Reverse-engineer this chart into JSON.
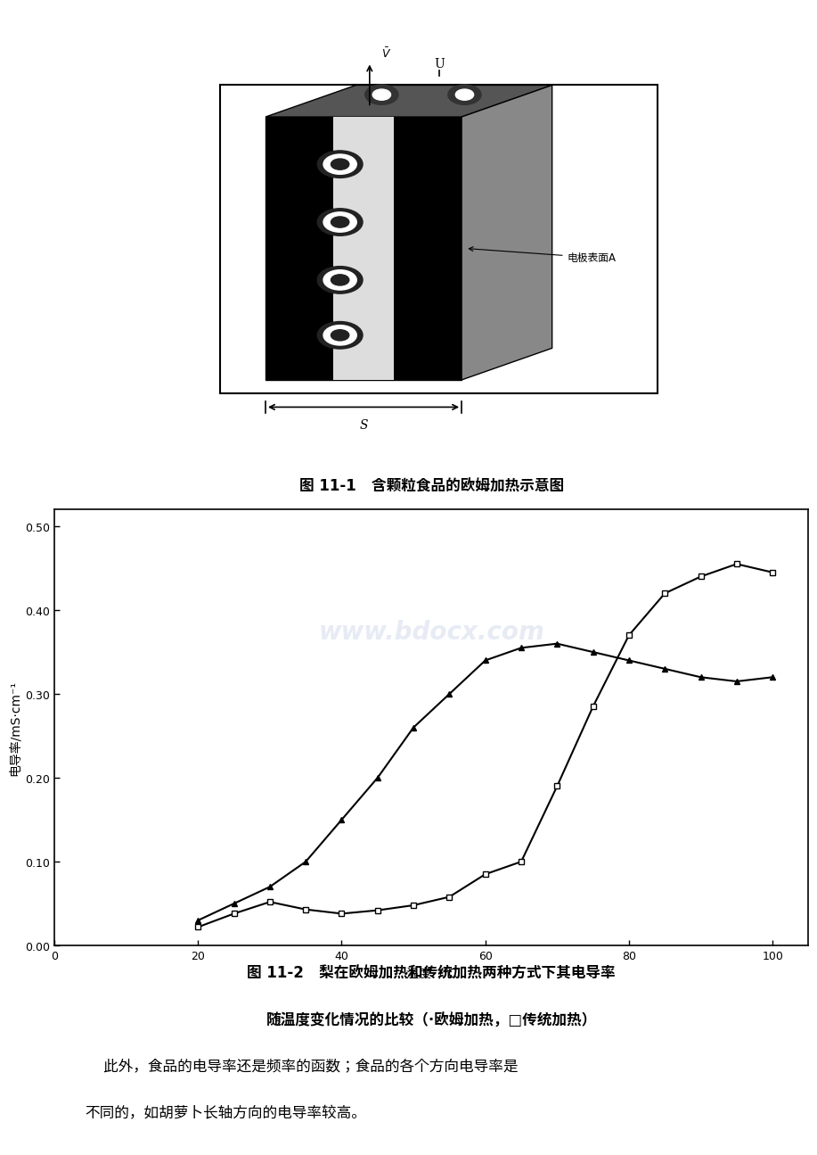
{
  "fig_width": 9.2,
  "fig_height": 13.02,
  "fig_dpi": 100,
  "background_color": "#ffffff",
  "watermark_text": "www.bdocx.com",
  "watermark_color": "#c8d4e8",
  "watermark_alpha": 0.45,
  "caption1": "图 11-1   含颗粒食品的欧姆加热示意图",
  "caption2_line1": "图 11-2   梨在欧姆加热和传统加热两种方式下其电导率",
  "caption2_line2": "随温度变化情况的比较（·欧姆加热，□传统加热）",
  "body_text_line1": "    此外，食品的电导率还是频率的函数；食品的各个方向电导率是",
  "body_text_line2": "不同的，如胡萝卜长轴方向的电导率较高。",
  "xlabel": "温度  /℃",
  "ylabel": "电导率/mS·cm⁻¹",
  "xlim": [
    0,
    105
  ],
  "ylim": [
    0.0,
    0.52
  ],
  "xticks": [
    0,
    20,
    40,
    60,
    80,
    100
  ],
  "yticks": [
    0.0,
    0.1,
    0.2,
    0.3,
    0.4,
    0.5
  ],
  "ytick_labels": [
    "0.00",
    "0.10",
    "0.20",
    "0.30",
    "0.40",
    "0.50"
  ],
  "ohmic_x": [
    20,
    25,
    30,
    35,
    40,
    45,
    50,
    55,
    60,
    65,
    70,
    75,
    80,
    85,
    90,
    95,
    100
  ],
  "ohmic_y": [
    0.03,
    0.05,
    0.07,
    0.1,
    0.15,
    0.2,
    0.26,
    0.3,
    0.34,
    0.355,
    0.36,
    0.35,
    0.34,
    0.33,
    0.32,
    0.315,
    0.32
  ],
  "trad_x": [
    20,
    25,
    30,
    35,
    40,
    45,
    50,
    55,
    60,
    65,
    70,
    75,
    80,
    85,
    90,
    95,
    100
  ],
  "trad_y": [
    0.022,
    0.038,
    0.052,
    0.043,
    0.038,
    0.042,
    0.048,
    0.058,
    0.085,
    0.1,
    0.19,
    0.285,
    0.37,
    0.42,
    0.44,
    0.455,
    0.445
  ],
  "line_color": "#000000",
  "marker_ohmic": "^",
  "marker_trad": "s",
  "markersize_ohmic": 5,
  "markersize_trad": 5,
  "linewidth": 1.5,
  "caption_fontsize": 12,
  "caption2_fontsize": 12,
  "body_fontsize": 12,
  "axis_fontsize": 9,
  "label_fontsize": 10
}
